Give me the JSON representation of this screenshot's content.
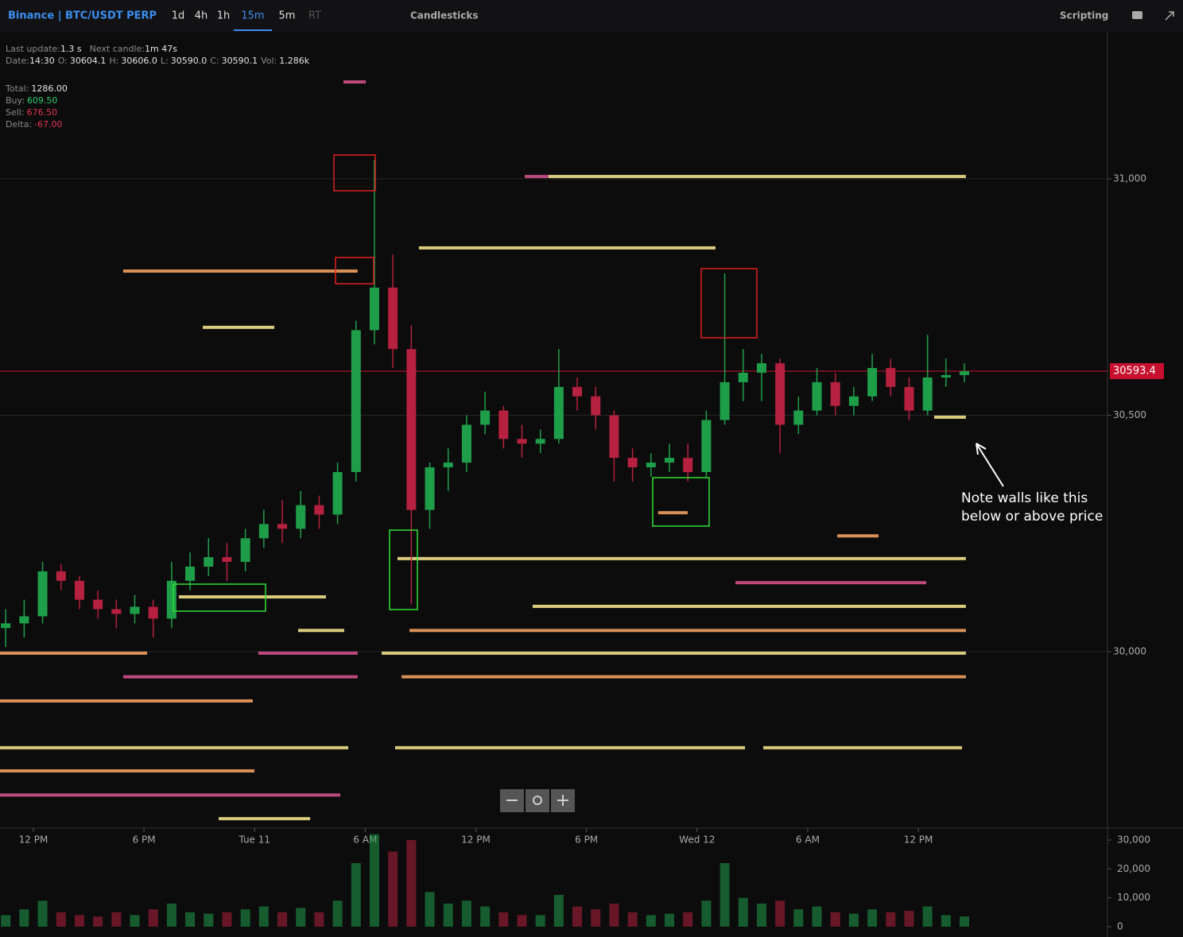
{
  "toolbar": {
    "brand": "Binance | BTC/USDT PERP",
    "timeframes": [
      "1d",
      "4h",
      "1h",
      "15m",
      "5m",
      "RT"
    ],
    "active_timeframe": "15m",
    "chart_style": "Candlesticks",
    "scripting": "Scripting"
  },
  "info": {
    "update_label": "Last update:",
    "update_value": "1.3 s",
    "next_label": "Next candle:",
    "next_value": "1m 47s",
    "date_label": "Date:",
    "date_value": "14:30",
    "open_label": "O:",
    "open_value": "30604.1",
    "high_label": "H:",
    "high_value": "30606.0",
    "low_label": "L:",
    "low_value": "30590.0",
    "close_label": "C:",
    "close_value": "30590.1",
    "vol_label": "Vol:",
    "vol_value": "1.286k",
    "total_label": "Total:",
    "total_value": "1286.00",
    "buy_label": "Buy:",
    "buy_value": "609.50",
    "sell_label": "Sell:",
    "sell_value": "676.50",
    "delta_label": "Delta:",
    "delta_value": "-67.00"
  },
  "annotation": {
    "line1": "Note walls like this",
    "line2": "below or above price"
  },
  "chart_data": [
    {
      "type": "candlestick",
      "x": [
        10.5,
        11.5,
        12.5,
        13.5,
        14.5,
        15.5,
        16.5,
        17.5,
        18.5,
        19.5,
        20.5,
        21.5,
        22.5,
        23.5,
        24.5,
        25.5,
        26.5,
        27.5,
        28.5,
        29.5,
        30.5,
        31.5,
        32.5,
        33.5,
        34.5,
        35.5,
        36.5,
        37.5,
        38.5,
        39.5,
        40.5,
        41.5,
        42.5,
        43.5,
        44.5,
        45.5,
        46.5,
        47.5,
        48.5,
        49.5,
        50.5,
        51.5,
        52.5,
        53.5,
        54.5,
        55.5,
        56.5,
        57.5,
        58.5,
        59.5,
        60.5,
        61.5,
        62.5
      ],
      "open": [
        30050,
        30060,
        30075,
        30170,
        30150,
        30110,
        30090,
        30080,
        30095,
        30070,
        30150,
        30180,
        30200,
        30190,
        30240,
        30270,
        30260,
        30310,
        30290,
        30380,
        30680,
        30770,
        30640,
        30300,
        30390,
        30400,
        30480,
        30510,
        30450,
        30440,
        30450,
        30560,
        30540,
        30500,
        30410,
        30390,
        30400,
        30410,
        30380,
        30490,
        30570,
        30590,
        30610,
        30480,
        30510,
        30570,
        30520,
        30540,
        30600,
        30560,
        30510,
        30580,
        30585
      ],
      "high": [
        30090,
        30110,
        30190,
        30185,
        30160,
        30130,
        30110,
        30120,
        30110,
        30190,
        30210,
        30240,
        30230,
        30260,
        30300,
        30320,
        30340,
        30330,
        30400,
        30700,
        31040,
        30840,
        30690,
        30400,
        30430,
        30500,
        30550,
        30520,
        30480,
        30470,
        30640,
        30580,
        30560,
        30510,
        30430,
        30420,
        30440,
        30440,
        30510,
        30800,
        30640,
        30630,
        30620,
        30540,
        30600,
        30590,
        30560,
        30630,
        30620,
        30580,
        30670,
        30620,
        30610
      ],
      "low": [
        30010,
        30030,
        30060,
        30130,
        30090,
        30070,
        30050,
        30060,
        30030,
        30050,
        30130,
        30160,
        30150,
        30170,
        30220,
        30230,
        30240,
        30260,
        30270,
        30360,
        30650,
        30600,
        30100,
        30260,
        30340,
        30380,
        30460,
        30430,
        30410,
        30420,
        30440,
        30510,
        30470,
        30360,
        30360,
        30370,
        30380,
        30360,
        30370,
        30480,
        30530,
        30530,
        30420,
        30460,
        30500,
        30500,
        30500,
        30530,
        30540,
        30490,
        30500,
        30560,
        30570
      ],
      "close": [
        30060,
        30075,
        30170,
        30150,
        30110,
        30090,
        30080,
        30095,
        30070,
        30150,
        30180,
        30200,
        30190,
        30240,
        30270,
        30260,
        30310,
        30290,
        30380,
        30680,
        30770,
        30640,
        30300,
        30390,
        30400,
        30480,
        30510,
        30450,
        30440,
        30450,
        30560,
        30540,
        30500,
        30410,
        30390,
        30400,
        30410,
        30380,
        30490,
        30570,
        30590,
        30610,
        30480,
        30510,
        30570,
        30520,
        30540,
        30600,
        30560,
        30510,
        30580,
        30585,
        30593.4
      ],
      "up_color": "#1f9e4a",
      "down_color": "#b5213e",
      "last_price": 30593.4,
      "last_price_color": "#c8102e",
      "xlim": [
        10.19,
        70.26
      ],
      "xticks": [
        {
          "value": 12,
          "label": "12 PM"
        },
        {
          "value": 18,
          "label": "6 PM"
        },
        {
          "value": 24,
          "label": "Tue 11"
        },
        {
          "value": 30,
          "label": "6 AM"
        },
        {
          "value": 36,
          "label": "12 PM"
        },
        {
          "value": 42,
          "label": "6 PM"
        },
        {
          "value": 48,
          "label": "Wed 12"
        },
        {
          "value": 54,
          "label": "6 AM"
        },
        {
          "value": 60,
          "label": "12 PM"
        }
      ],
      "ylim": [
        29627,
        31311
      ],
      "yticks": [
        {
          "value": 30000,
          "label": "30,000"
        },
        {
          "value": 30500,
          "label": "30,500"
        },
        {
          "value": 31000,
          "label": "31,000"
        }
      ],
      "grid": true,
      "walls": [
        {
          "price": 31005,
          "start": 39.94,
          "end": 62.58,
          "color": "#efe08a"
        },
        {
          "price": 31005,
          "start": 38.65,
          "end": 39.94,
          "color": "#d0508a"
        },
        {
          "price": 30854,
          "start": 32.91,
          "end": 49.0,
          "color": "#efe08a"
        },
        {
          "price": 30805,
          "start": 16.87,
          "end": 29.59,
          "color": "#f0a060"
        },
        {
          "price": 30686,
          "start": 21.19,
          "end": 25.07,
          "color": "#efe08a"
        },
        {
          "price": 31205,
          "start": 28.82,
          "end": 30.03,
          "color": "#d0508a"
        },
        {
          "price": 30496,
          "start": 60.86,
          "end": 62.58,
          "color": "#efe08a"
        },
        {
          "price": 30294,
          "start": 45.89,
          "end": 47.49,
          "color": "#f0a060"
        },
        {
          "price": 30245,
          "start": 55.6,
          "end": 57.84,
          "color": "#f0a060"
        },
        {
          "price": 30197,
          "start": 31.75,
          "end": 62.58,
          "color": "#efe08a"
        },
        {
          "price": 30146,
          "start": 50.08,
          "end": 60.43,
          "color": "#d0508a"
        },
        {
          "price": 30116,
          "start": 19.89,
          "end": 27.87,
          "color": "#efe08a"
        },
        {
          "price": 30096,
          "start": 39.08,
          "end": 62.58,
          "color": "#efe08a"
        },
        {
          "price": 30045,
          "start": 26.36,
          "end": 28.86,
          "color": "#efe08a"
        },
        {
          "price": 30045,
          "start": 32.4,
          "end": 62.58,
          "color": "#f0a060"
        },
        {
          "price": 29997,
          "start": 10.19,
          "end": 18.17,
          "color": "#f0a060"
        },
        {
          "price": 29997,
          "start": 24.2,
          "end": 29.59,
          "color": "#d0508a"
        },
        {
          "price": 29997,
          "start": 30.89,
          "end": 62.58,
          "color": "#efe08a"
        },
        {
          "price": 29947,
          "start": 16.87,
          "end": 29.59,
          "color": "#d0508a"
        },
        {
          "price": 29947,
          "start": 31.97,
          "end": 62.58,
          "color": "#f0a060"
        },
        {
          "price": 29896,
          "start": 10.19,
          "end": 23.9,
          "color": "#f0a060"
        },
        {
          "price": 29797,
          "start": 10.19,
          "end": 29.08,
          "color": "#efe08a"
        },
        {
          "price": 29797,
          "start": 31.62,
          "end": 50.6,
          "color": "#efe08a"
        },
        {
          "price": 29797,
          "start": 51.59,
          "end": 62.37,
          "color": "#efe08a"
        },
        {
          "price": 29748,
          "start": 10.19,
          "end": 23.99,
          "color": "#f0a060"
        },
        {
          "price": 29697,
          "start": 10.19,
          "end": 28.65,
          "color": "#d0508a"
        },
        {
          "price": 29647,
          "start": 22.05,
          "end": 27.01,
          "color": "#efe08a"
        }
      ]
    },
    {
      "type": "bar",
      "values": [
        4000,
        6000,
        9000,
        5000,
        4000,
        3500,
        5000,
        4000,
        6000,
        8000,
        5000,
        4500,
        5000,
        6000,
        7000,
        5000,
        6500,
        5000,
        9000,
        22000,
        32000,
        26000,
        30000,
        12000,
        8000,
        9000,
        7000,
        5000,
        4000,
        4000,
        11000,
        7000,
        6000,
        8000,
        5000,
        4000,
        4500,
        5000,
        9000,
        22000,
        10000,
        8000,
        9000,
        6000,
        7000,
        5000,
        4500,
        6000,
        5000,
        5500,
        7000,
        4000,
        3500
      ],
      "ylim": [
        0,
        33300
      ],
      "yticks": [
        0,
        {
          "value": 10000,
          "label": "10,000"
        },
        {
          "value": 20000,
          "label": "20,000"
        },
        {
          "value": 30000,
          "label": "30,000"
        }
      ]
    }
  ]
}
